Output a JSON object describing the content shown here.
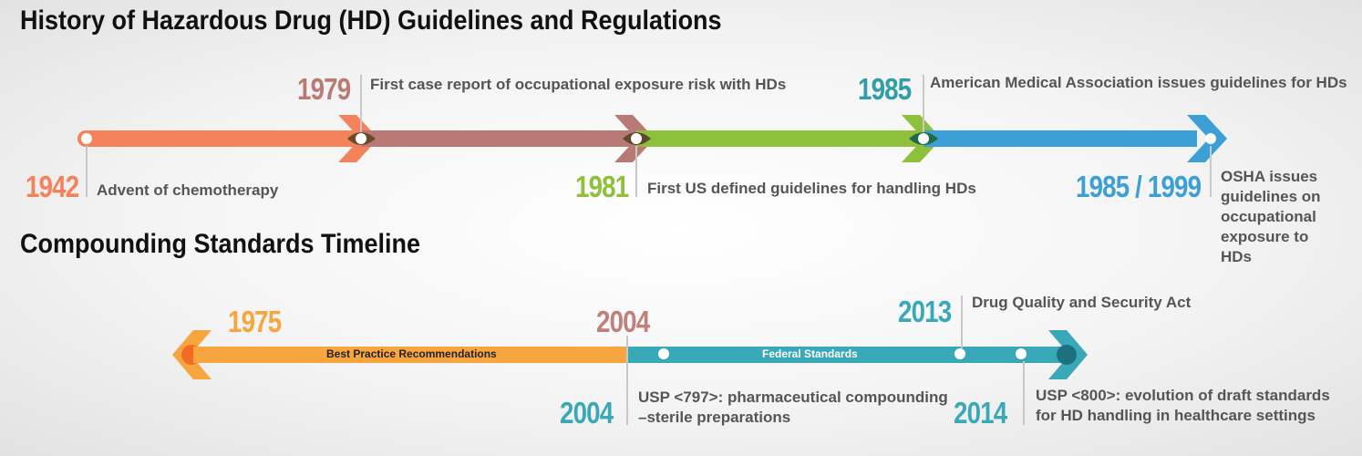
{
  "section1": {
    "title": "History of Hazardous Drug (HD) Guidelines and Regulations",
    "events": [
      {
        "year": "1942",
        "text": "Advent of chemotherapy",
        "color": "#f4835c"
      },
      {
        "year": "1979",
        "text": "First case report of occupational exposure risk with HDs",
        "color": "#b97a76"
      },
      {
        "year": "1981",
        "text": "First US defined guidelines for handling HDs",
        "color": "#8fc03c"
      },
      {
        "year": "1985",
        "text": "American Medical Association issues guidelines for HDs",
        "color": "#2f9ea8"
      },
      {
        "year": "1985 / 1999",
        "text": "OSHA issues guidelines on occupational exposure to HDs",
        "color": "#3c9fd6"
      }
    ]
  },
  "section2": {
    "title": "Compounding Standards Timeline",
    "segments": [
      {
        "label": "Best Practice Recommendations",
        "color": "#f7a53e"
      },
      {
        "label": "Federal Standards",
        "color": "#3aa9b7"
      }
    ],
    "events": [
      {
        "year": "1975",
        "color": "#f7a53e"
      },
      {
        "year": "2004",
        "color": "#c0807c"
      },
      {
        "year": "2013",
        "text": "Drug Quality and Security Act",
        "color": "#3aa9b7"
      },
      {
        "year": "2004",
        "text_line1": "USP <797>: pharmaceutical compounding",
        "text_line2": "–sterile preparations",
        "color": "#3aa9b7"
      },
      {
        "year": "2014",
        "text_line1": "USP <800>: evolution of draft standards",
        "text_line2": "for HD handling in healthcare settings",
        "color": "#3aa9b7"
      }
    ]
  }
}
